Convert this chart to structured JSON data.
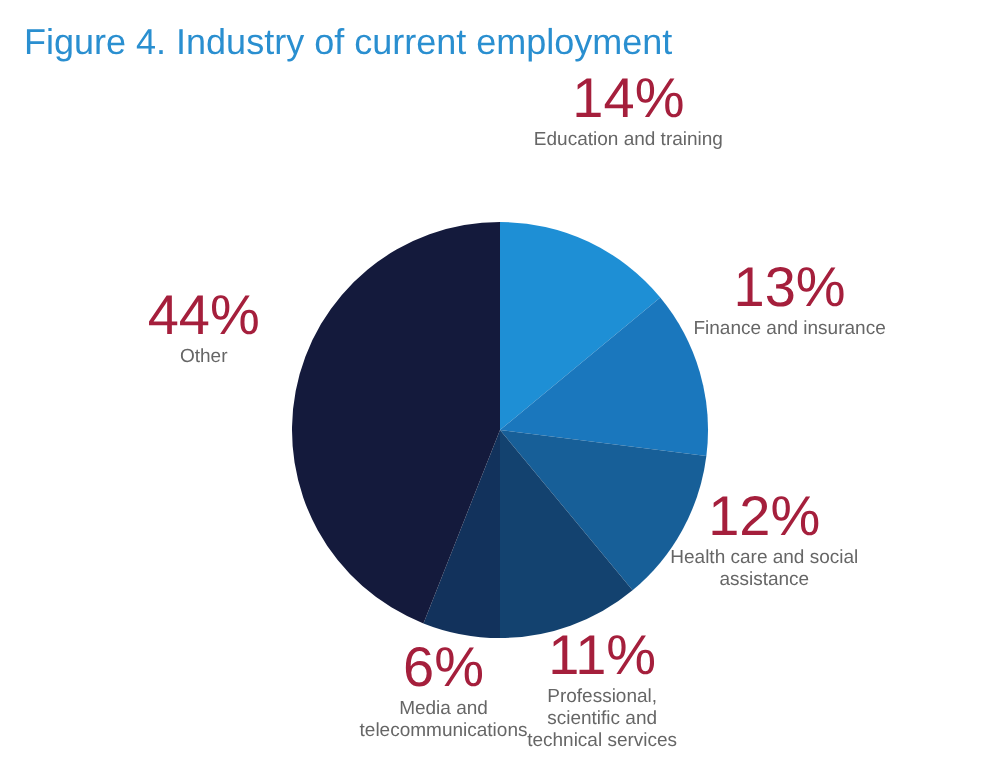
{
  "chart_data": {
    "type": "pie",
    "title": "Figure 4. Industry of current employment",
    "categories": [
      "Education and training",
      "Finance and insurance",
      "Health care and social assistance",
      "Professional, scientific and technical services",
      "Media and telecommunications",
      "Other"
    ],
    "values": [
      14,
      13,
      12,
      11,
      6,
      44
    ],
    "value_labels": [
      "14%",
      "13%",
      "12%",
      "11%",
      "6%",
      "44%"
    ],
    "colors": [
      "#1e8fd5",
      "#1a77bd",
      "#175f98",
      "#13426f",
      "#12325c",
      "#141a3c"
    ]
  }
}
